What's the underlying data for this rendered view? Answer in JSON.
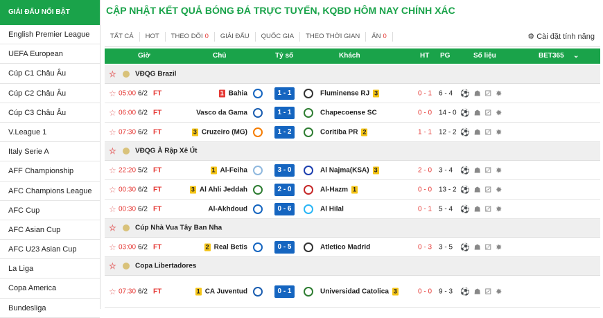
{
  "sidebar": {
    "title": "GIẢI ĐẤU NỔI BẬT",
    "items": [
      "English Premier League",
      "UEFA European",
      "Cúp C1 Châu Âu",
      "Cúp C2 Châu Âu",
      "Cúp C3 Châu Âu",
      "V.League 1",
      "Italy Serie A",
      "AFF Championship",
      "AFC Champions League",
      "AFC Cup",
      "AFC Asian Cup",
      "AFC U23 Asian Cup",
      "La Liga",
      "Copa America",
      "Bundesliga"
    ]
  },
  "header": {
    "title": "CẬP NHẬT KẾT QUẢ BÓNG ĐÁ TRỰC TUYẾN, KQBD HÔM NAY CHÍNH XÁC"
  },
  "tabs": [
    {
      "label": "TẤT CẢ"
    },
    {
      "label": "HOT"
    },
    {
      "label": "THEO DÕI",
      "count": "0"
    },
    {
      "label": "GIẢI ĐẤU"
    },
    {
      "label": "QUỐC GIA"
    },
    {
      "label": "THEO THỜI GIAN"
    },
    {
      "label": "ẨN",
      "count": "0"
    }
  ],
  "settings_link": "Cài đặt tính năng",
  "columns": {
    "time": "Giờ",
    "home": "Chủ",
    "score": "Tỷ số",
    "away": "Khách",
    "ht": "HT",
    "pg": "PG",
    "stats": "Số liệu",
    "bet": "BET365"
  },
  "leagues": [
    {
      "name": "VĐQG Brazil",
      "matches": [
        {
          "time": "05:00",
          "date": "6/2",
          "status": "FT",
          "home": "Bahia",
          "home_card": "1",
          "home_card_color": "#e53935",
          "score": "1 - 1",
          "away": "Fluminense RJ",
          "away_card": "3",
          "away_card_color": "#f5c518",
          "ht": "0 - 1",
          "pg": "6 - 4"
        },
        {
          "time": "06:00",
          "date": "6/2",
          "status": "FT",
          "home": "Vasco da Gama",
          "score": "1 - 1",
          "away": "Chapecoense SC",
          "ht": "0 - 0",
          "pg": "14 - 0"
        },
        {
          "time": "07:30",
          "date": "6/2",
          "status": "FT",
          "home": "Cruzeiro (MG)",
          "home_card": "3",
          "home_card_color": "#f5c518",
          "score": "1 - 2",
          "away": "Coritiba PR",
          "away_card": "2",
          "away_card_color": "#f5c518",
          "ht": "1 - 1",
          "pg": "12 - 2"
        }
      ]
    },
    {
      "name": "VĐQG Ả Rập Xê Út",
      "matches": [
        {
          "time": "22:20",
          "date": "5/2",
          "status": "FT",
          "home": "Al-Feiha",
          "home_card": "1",
          "home_card_color": "#f5c518",
          "score": "3 - 0",
          "away": "Al Najma(KSA)",
          "away_card": "3",
          "away_card_color": "#f5c518",
          "ht": "2 - 0",
          "pg": "3 - 4"
        },
        {
          "time": "00:30",
          "date": "6/2",
          "status": "FT",
          "home": "Al Ahli Jeddah",
          "home_card": "3",
          "home_card_color": "#f5c518",
          "score": "2 - 0",
          "away": "Al-Hazm",
          "away_card": "1",
          "away_card_color": "#f5c518",
          "ht": "0 - 0",
          "pg": "13 - 2"
        },
        {
          "time": "00:30",
          "date": "6/2",
          "status": "FT",
          "home": "Al-Akhdoud",
          "score": "0 - 6",
          "away": "Al Hilal",
          "ht": "0 - 1",
          "pg": "5 - 4"
        }
      ]
    },
    {
      "name": "Cúp Nhà Vua Tây Ban Nha",
      "matches": [
        {
          "time": "03:00",
          "date": "6/2",
          "status": "FT",
          "home": "Real Betis",
          "home_card": "2",
          "home_card_color": "#f5c518",
          "score": "0 - 5",
          "away": "Atletico Madrid",
          "ht": "0 - 3",
          "pg": "3 - 5"
        }
      ]
    },
    {
      "name": "Copa Libertadores",
      "matches": [
        {
          "time": "07:30",
          "date": "6/2",
          "status": "FT",
          "home": "CA Juventud",
          "home_card": "1",
          "home_card_color": "#f5c518",
          "score": "0 - 1",
          "away": "Universidad Catolica",
          "away_card": "3",
          "away_card_color": "#f5c518",
          "ht": "0 - 0",
          "pg": "9 - 3"
        }
      ]
    }
  ]
}
